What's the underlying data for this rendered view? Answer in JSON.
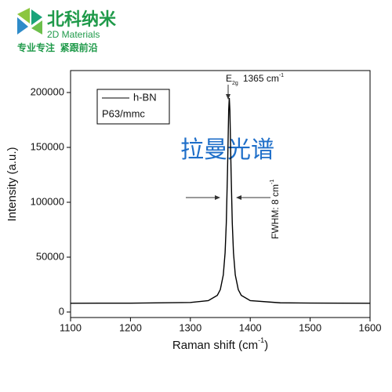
{
  "logo": {
    "name": "北科纳米",
    "subtitle": "2D Materials",
    "slogan": "专业专注  紧跟前沿"
  },
  "chart_data": {
    "type": "line",
    "watermark": "拉曼光谱",
    "x_label": "Raman shift (cm",
    "x_label_sup": "-1",
    "x_label_end": ")",
    "y_label": "Intensity (a.u.)",
    "legend_note": "P63/mmc",
    "peak_label": "E",
    "peak_label_sub": "2g",
    "peak_position_label": "1365 cm",
    "peak_position_sup": "-1",
    "fwhm_label": "FWHM: 8 cm",
    "fwhm_sup": "-1",
    "x": [
      1100,
      1200,
      1300,
      1330,
      1345,
      1350,
      1355,
      1358,
      1360,
      1362,
      1364,
      1365,
      1366,
      1368,
      1370,
      1372,
      1375,
      1380,
      1385,
      1400,
      1450,
      1500,
      1600
    ],
    "series": [
      {
        "name": "h-BN",
        "color": "#000000",
        "values": [
          8000,
          8100,
          8700,
          10400,
          15200,
          20400,
          33800,
          54000,
          81000,
          127700,
          184000,
          195000,
          184000,
          127700,
          81000,
          54000,
          33800,
          20400,
          15200,
          10400,
          8400,
          8200,
          8000
        ]
      }
    ],
    "xlim": [
      1100,
      1600
    ],
    "xticks": [
      1100,
      1200,
      1300,
      1400,
      1500,
      1600
    ],
    "ylim": [
      -5000,
      220000
    ],
    "yticks": [
      0,
      50000,
      100000,
      150000,
      200000
    ],
    "grid": false
  }
}
